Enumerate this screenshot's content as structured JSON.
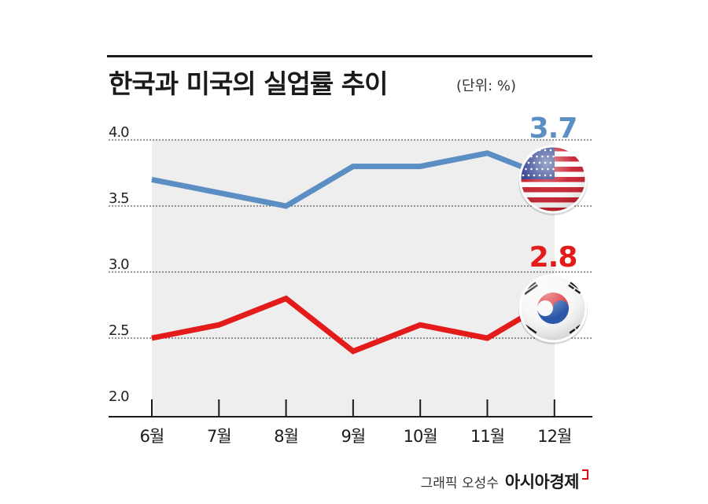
{
  "header": {
    "title": "한국과 미국의 실업률 추이",
    "unit": "(단위: %)"
  },
  "credit": {
    "graphic_by": "그래픽 오성수",
    "publisher": "아시아경제"
  },
  "colors": {
    "us_line": "#5b8fc3",
    "kr_line": "#e31b1b",
    "plot_bg": "#eeeeee",
    "axis": "#1a1a1a"
  },
  "chart_data": {
    "type": "line",
    "title": "한국과 미국의 실업률 추이",
    "ylabel": "(단위: %)",
    "categories": [
      "6월",
      "7월",
      "8월",
      "9월",
      "10월",
      "11월",
      "12월"
    ],
    "ylim": [
      2.0,
      4.0
    ],
    "yticks": [
      "4.0",
      "3.5",
      "3.0",
      "2.5",
      "2.0"
    ],
    "grid": true,
    "series": [
      {
        "key": "us",
        "values": [
          3.7,
          3.6,
          3.5,
          3.8,
          3.8,
          3.9,
          3.7
        ],
        "end_label": "3.7",
        "flag": "us-flag",
        "color": "#5b8fc3"
      },
      {
        "key": "kr",
        "values": [
          2.5,
          2.6,
          2.8,
          2.4,
          2.6,
          2.5,
          2.8
        ],
        "end_label": "2.8",
        "flag": "kr-flag",
        "color": "#e31b1b"
      }
    ]
  }
}
